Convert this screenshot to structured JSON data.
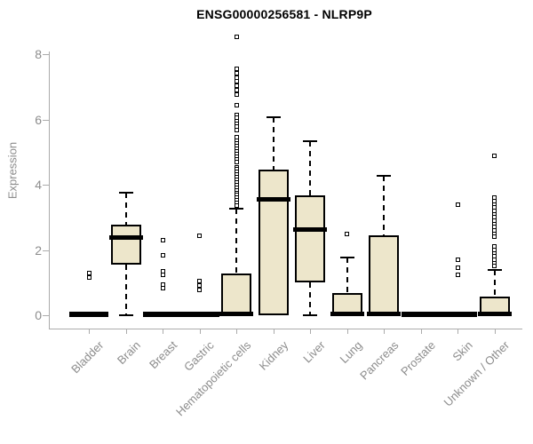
{
  "page": {
    "background": "#FFFFFF"
  },
  "chart_data": {
    "type": "boxplot",
    "title": "ENSG00000256581 - NLRP9P",
    "ylabel": "Expression",
    "xlabel": "",
    "ylim": [
      0,
      8.6
    ],
    "yticks": [
      "0",
      "2",
      "4",
      "6",
      "8"
    ],
    "grid": false,
    "legend": "none",
    "categories": [
      "Bladder",
      "Brain",
      "Breast",
      "Gastric",
      "Hematopoietic cells",
      "Kidney",
      "Liver",
      "Lung",
      "Pancreas",
      "Prostate",
      "Skin",
      "Unknown / Other"
    ],
    "boxes": [
      {
        "category": "Bladder",
        "type": "flat",
        "value": 0,
        "outliers": [
          1.3,
          1.17
        ]
      },
      {
        "category": "Brain",
        "type": "box",
        "low": 0,
        "q1": 1.55,
        "median": 2.4,
        "q3": 2.78,
        "high": 3.75,
        "outliers": []
      },
      {
        "category": "Breast",
        "type": "flat",
        "value": 0,
        "outliers": [
          2.3,
          1.85,
          1.36,
          1.25,
          0.95,
          0.82
        ]
      },
      {
        "category": "Gastric",
        "type": "flat",
        "value": 0,
        "outliers": [
          2.45,
          1.05,
          0.91,
          0.79
        ]
      },
      {
        "category": "Hematopoietic cells",
        "type": "box",
        "low": 0,
        "q1": 0,
        "median": 0.05,
        "q3": 1.28,
        "high": 3.27,
        "outliers": [
          8.55,
          7.55,
          7.42,
          7.3,
          7.17,
          7.05,
          6.92,
          6.78,
          6.45,
          6.15,
          6.05,
          5.95,
          5.87,
          5.78,
          5.68,
          5.45,
          5.35,
          5.27,
          5.18,
          5.1,
          5.02,
          4.94,
          4.86,
          4.78,
          4.7,
          4.55,
          4.48,
          4.4,
          4.32,
          4.24,
          4.16,
          4.08,
          4.0,
          3.92,
          3.84,
          3.76,
          3.68,
          3.6,
          3.52,
          3.44,
          3.36
        ]
      },
      {
        "category": "Kidney",
        "type": "box",
        "low": 0,
        "q1": 0,
        "median": 3.58,
        "q3": 4.47,
        "high": 6.08,
        "outliers": []
      },
      {
        "category": "Liver",
        "type": "box",
        "low": 0,
        "q1": 1.0,
        "median": 2.63,
        "q3": 3.68,
        "high": 5.33,
        "outliers": []
      },
      {
        "category": "Lung",
        "type": "box",
        "low": 0,
        "q1": 0,
        "median": 0.05,
        "q3": 0.67,
        "high": 1.77,
        "outliers": [
          2.5
        ]
      },
      {
        "category": "Pancreas",
        "type": "box",
        "low": 0,
        "q1": 0,
        "median": 0.05,
        "q3": 2.45,
        "high": 4.27,
        "outliers": []
      },
      {
        "category": "Prostate",
        "type": "flat",
        "value": 0,
        "outliers": []
      },
      {
        "category": "Skin",
        "type": "flat",
        "value": 0,
        "outliers": [
          3.4,
          1.7,
          1.45,
          1.25
        ]
      },
      {
        "category": "Unknown / Other",
        "type": "box",
        "low": 0,
        "q1": 0,
        "median": 0.05,
        "q3": 0.58,
        "high": 1.4,
        "outliers": [
          4.9,
          3.62,
          3.5,
          3.4,
          3.3,
          3.2,
          3.1,
          3.0,
          2.9,
          2.8,
          2.7,
          2.6,
          2.5,
          2.42,
          2.1,
          2.0,
          1.9,
          1.8,
          1.7,
          1.6,
          1.52
        ]
      }
    ],
    "colors": {
      "box_fill": "#EDE6CB",
      "box_stroke": "#000000",
      "axis_line": "#ABABAB",
      "axis_text": "#8C8C8C",
      "title_color": "#000000",
      "background": "#FFFFFF"
    }
  }
}
